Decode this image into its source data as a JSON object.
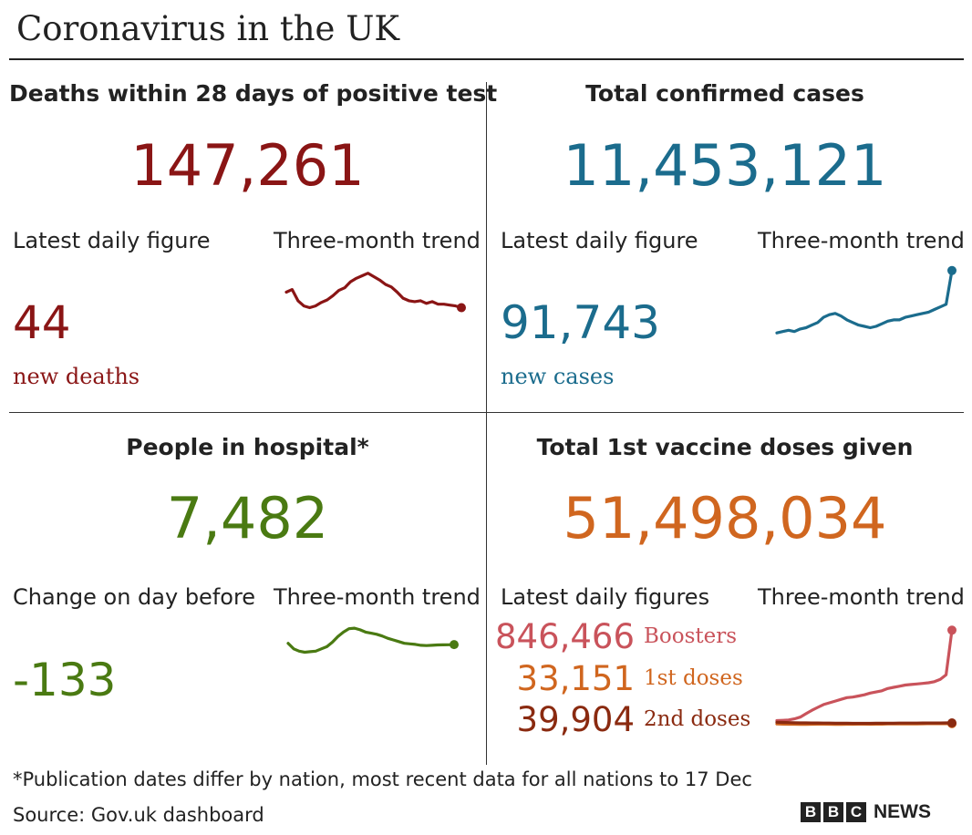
{
  "title": "Coronavirus in the UK",
  "deaths": {
    "heading": "Deaths within 28 days of positive test",
    "total": "147,261",
    "daily_label": "Latest daily figure",
    "trend_label": "Three-month trend",
    "daily_value": "44",
    "daily_sub": "new deaths"
  },
  "cases": {
    "heading": "Total confirmed cases",
    "total": "11,453,121",
    "daily_label": "Latest daily figure",
    "trend_label": "Three-month trend",
    "daily_value": "91,743",
    "daily_sub": "new cases"
  },
  "hospital": {
    "heading": "People in hospital*",
    "total": "7,482",
    "daily_label": "Change on day before",
    "trend_label": "Three-month trend",
    "daily_value": "-133"
  },
  "vaccines": {
    "heading": "Total 1st vaccine doses given",
    "total": "51,498,034",
    "daily_label": "Latest daily figures",
    "trend_label": "Three-month trend",
    "rows": [
      {
        "value": "846,466",
        "label": "Boosters"
      },
      {
        "value": "33,151",
        "label": "1st doses"
      },
      {
        "value": "39,904",
        "label": "2nd doses"
      }
    ]
  },
  "footnote": "*Publication dates differ by nation, most recent data for all nations to 17 Dec",
  "source": "Source: Gov.uk dashboard",
  "brand": {
    "letters": [
      "B",
      "B",
      "C"
    ],
    "word": "NEWS"
  },
  "colors": {
    "deaths": "#8a1515",
    "cases": "#1b6c8d",
    "hospital": "#4a7a12",
    "first_doses": "#d0661f",
    "boosters": "#c9535b",
    "second_doses": "#8a2a10"
  },
  "chart_data": [
    {
      "type": "line",
      "panel": "deaths",
      "x_range": [
        0,
        30
      ],
      "series": [
        {
          "values": [
            122,
            125,
            112,
            106,
            104,
            106,
            110,
            113,
            118,
            124,
            127,
            134,
            138,
            141,
            144,
            140,
            136,
            131,
            128,
            122,
            115,
            112,
            111,
            112,
            109,
            111,
            108,
            108,
            107,
            106,
            104
          ]
        }
      ],
      "ylim": [
        95,
        150
      ]
    },
    {
      "type": "line",
      "panel": "cases",
      "x_range": [
        0,
        30
      ],
      "series": [
        {
          "values": [
            30,
            31,
            32,
            31,
            33,
            34,
            36,
            38,
            42,
            44,
            45,
            43,
            40,
            38,
            36,
            35,
            34,
            35,
            37,
            39,
            40,
            40,
            42,
            43,
            44,
            45,
            46,
            48,
            50,
            52,
            78
          ]
        }
      ],
      "ylim": [
        28,
        80
      ]
    },
    {
      "type": "line",
      "panel": "hospital",
      "x_range": [
        0,
        30
      ],
      "series": [
        {
          "values": [
            7600,
            7100,
            6900,
            6800,
            6850,
            6900,
            7100,
            7300,
            7700,
            8200,
            8600,
            8900,
            8950,
            8800,
            8600,
            8500,
            8400,
            8250,
            8050,
            7900,
            7750,
            7600,
            7550,
            7500,
            7420,
            7400,
            7420,
            7450,
            7460,
            7470,
            7482
          ]
        }
      ],
      "ylim": [
        6600,
        9200
      ]
    },
    {
      "type": "line",
      "panel": "vaccines",
      "x_range": [
        0,
        30
      ],
      "series": [
        {
          "name": "Boosters",
          "values": [
            60,
            62,
            65,
            75,
            90,
            120,
            150,
            175,
            200,
            215,
            230,
            245,
            260,
            265,
            275,
            285,
            300,
            310,
            320,
            340,
            350,
            360,
            370,
            375,
            380,
            385,
            390,
            400,
            420,
            460,
            850
          ]
        },
        {
          "name": "1st doses",
          "values": [
            30,
            29,
            28,
            28,
            27,
            27,
            28,
            29,
            29,
            28,
            27,
            27,
            28,
            28,
            29,
            29,
            28,
            29,
            29,
            30,
            30,
            30,
            31,
            31,
            31,
            32,
            33,
            33,
            33,
            33,
            33
          ]
        },
        {
          "name": "2nd doses",
          "values": [
            45,
            44,
            42,
            41,
            40,
            40,
            39,
            39,
            38,
            38,
            37,
            37,
            37,
            36,
            36,
            36,
            36,
            37,
            37,
            37,
            37,
            38,
            38,
            38,
            38,
            39,
            39,
            39,
            39,
            40,
            40
          ]
        }
      ],
      "ylim": [
        0,
        860
      ]
    }
  ]
}
